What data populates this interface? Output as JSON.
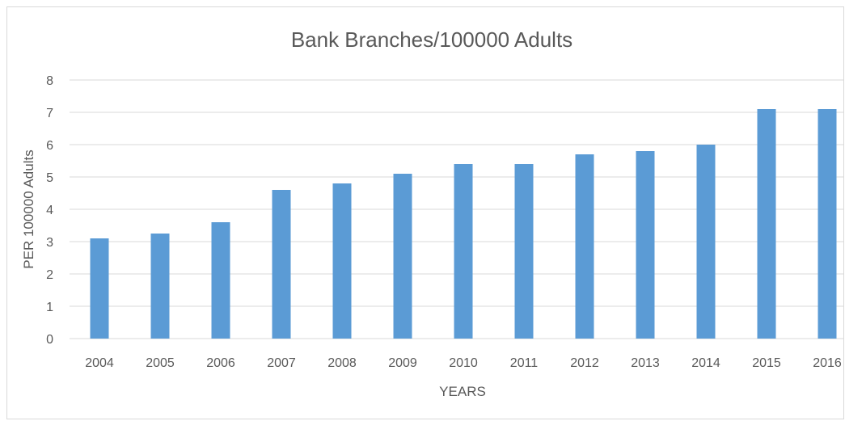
{
  "chart_data": {
    "type": "bar",
    "title": "Bank Branches/100000 Adults",
    "xlabel": "YEARS",
    "ylabel": "PER 100000 Adults",
    "categories": [
      "2004",
      "2005",
      "2006",
      "2007",
      "2008",
      "2009",
      "2010",
      "2011",
      "2012",
      "2013",
      "2014",
      "2015",
      "2016"
    ],
    "values": [
      3.1,
      3.25,
      3.6,
      4.6,
      4.8,
      5.1,
      5.4,
      5.4,
      5.7,
      5.8,
      6.0,
      7.1,
      7.1
    ],
    "ylim": [
      0,
      8
    ],
    "yticks": [
      "0",
      "1",
      "2",
      "3",
      "4",
      "5",
      "6",
      "7",
      "8"
    ],
    "grid": true,
    "legend": "none",
    "bar_color": "#5B9BD5"
  }
}
